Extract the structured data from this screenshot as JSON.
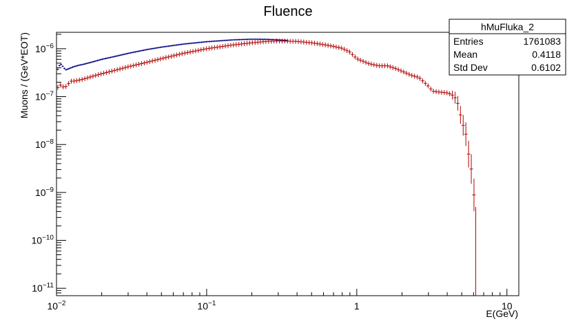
{
  "chart_data": {
    "type": "line",
    "title": "Fluence",
    "xlabel": "E(GeV)",
    "ylabel": "Muons / (GeV*EOT)",
    "xscale": "log",
    "yscale": "log",
    "xlim": [
      0.01,
      12.0
    ],
    "ylim": [
      7e-12,
      2.2e-06
    ],
    "x_ticks": [
      {
        "value": 0.01,
        "base": "10",
        "exp": "−2"
      },
      {
        "value": 0.1,
        "base": "10",
        "exp": "−1"
      },
      {
        "value": 1,
        "base": "1",
        "exp": ""
      },
      {
        "value": 10,
        "base": "10",
        "exp": ""
      }
    ],
    "y_ticks": [
      {
        "value": 1e-11,
        "base": "10",
        "exp": "−11"
      },
      {
        "value": 1e-10,
        "base": "10",
        "exp": "−10"
      },
      {
        "value": 1e-09,
        "base": "10",
        "exp": "−9"
      },
      {
        "value": 1e-08,
        "base": "10",
        "exp": "−8"
      },
      {
        "value": 1e-07,
        "base": "10",
        "exp": "−7"
      },
      {
        "value": 1e-06,
        "base": "10",
        "exp": "−6"
      }
    ],
    "grid": false,
    "series": [
      {
        "color": "#000080",
        "x": [
          0.0102,
          0.0106,
          0.011,
          0.0115,
          0.012,
          0.0125,
          0.013,
          0.014,
          0.015,
          0.017,
          0.02,
          0.025,
          0.03,
          0.04,
          0.05,
          0.07,
          0.1,
          0.15,
          0.2,
          0.25,
          0.3,
          0.35
        ],
        "y": [
          3.7e-07,
          4.9e-07,
          4.3e-07,
          3.6e-07,
          3.8e-07,
          4e-07,
          4.2e-07,
          4.5e-07,
          4.7e-07,
          5.2e-07,
          6e-07,
          7e-07,
          8e-07,
          9.6e-07,
          1.08e-06,
          1.25e-06,
          1.4e-06,
          1.53e-06,
          1.58e-06,
          1.57e-06,
          1.53e-06,
          1.48e-06
        ]
      },
      {
        "color": "#b00000",
        "x": [
          0.0102,
          0.0106,
          0.011,
          0.0115,
          0.012,
          0.0125,
          0.013,
          0.014,
          0.015,
          0.017,
          0.02,
          0.025,
          0.03,
          0.04,
          0.05,
          0.07,
          0.1,
          0.15,
          0.2,
          0.25,
          0.3,
          0.4,
          0.5,
          0.6,
          0.7,
          0.8,
          0.9,
          1.0,
          1.2,
          1.4,
          1.6,
          1.8,
          2.0,
          2.3,
          2.6,
          3.0,
          3.2,
          3.5,
          4.0,
          4.3,
          4.6,
          4.8,
          5.0,
          5.2,
          5.4,
          5.6,
          5.8,
          6.0,
          6.2
        ],
        "y": [
          1.55e-07,
          1.75e-07,
          1.6e-07,
          1.6e-07,
          1.85e-07,
          2.1e-07,
          2.1e-07,
          2.2e-07,
          2.3e-07,
          2.6e-07,
          3e-07,
          3.6e-07,
          4.2e-07,
          5.2e-07,
          6.2e-07,
          8e-07,
          1e-06,
          1.2e-06,
          1.33e-06,
          1.42e-06,
          1.45e-06,
          1.42e-06,
          1.33e-06,
          1.22e-06,
          1.12e-06,
          1.02e-06,
          8.5e-07,
          6.2e-07,
          4.9e-07,
          4.4e-07,
          4.4e-07,
          3.9e-07,
          3.4e-07,
          2.8e-07,
          2.5e-07,
          1.65e-07,
          1.3e-07,
          1.25e-07,
          1.2e-07,
          1.1e-07,
          9e-08,
          6e-08,
          3e-08,
          2.2e-08,
          1.4e-08,
          5e-09,
          3e-09,
          1e-09,
          5e-10
        ]
      }
    ],
    "stats_box": {
      "title": "hMuFluka_2",
      "rows": [
        {
          "label": "Entries",
          "value": "1761083"
        },
        {
          "label": "Mean",
          "value": "0.4118"
        },
        {
          "label": "Std Dev",
          "value": "0.6102"
        }
      ]
    }
  }
}
